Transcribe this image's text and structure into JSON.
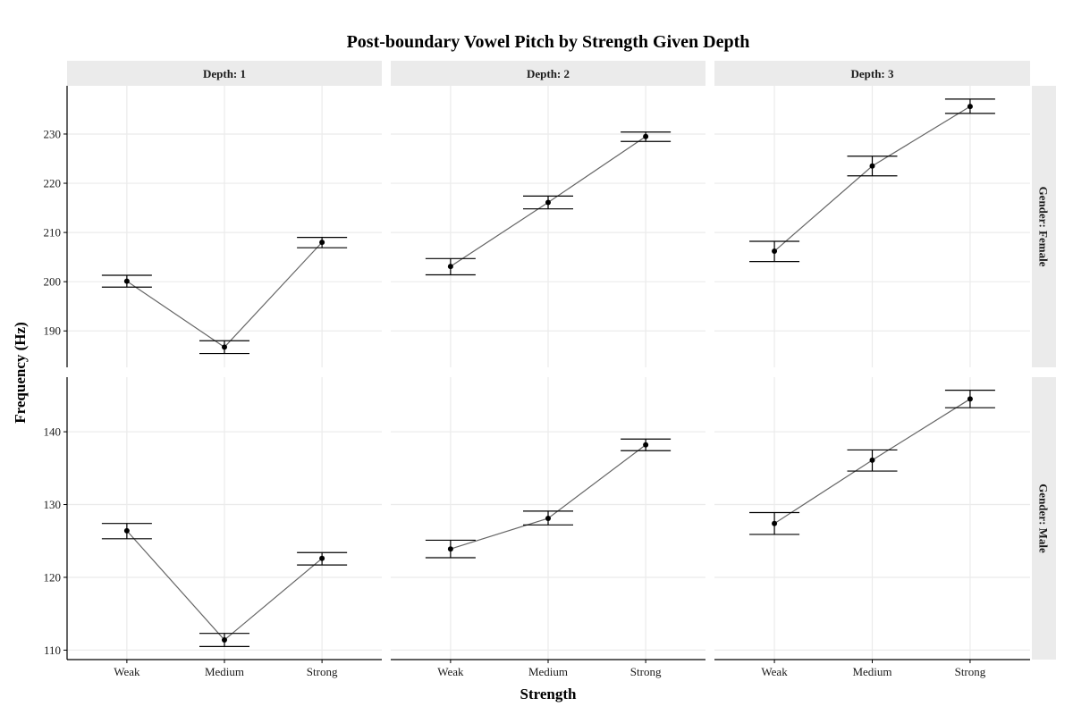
{
  "chart_data": {
    "type": "line",
    "title": "Post-boundary Vowel Pitch by Strength Given Depth",
    "xlabel": "Strength",
    "ylabel": "Frequency (Hz)",
    "categories": [
      "Weak",
      "Medium",
      "Strong"
    ],
    "grid": true,
    "legend": "none",
    "facet_columns": [
      "Depth: 1",
      "Depth: 2",
      "Depth: 3"
    ],
    "facet_rows": [
      "Gender: Female",
      "Gender: Male"
    ],
    "rows": [
      {
        "label": "Gender: Female",
        "yticks": [
          190,
          200,
          210,
          220,
          230
        ],
        "ylim": [
          182.6,
          239.8
        ],
        "panels": [
          {
            "column": "Depth: 1",
            "values": [
              200.1,
              186.7,
              208.0
            ],
            "lower": [
              198.9,
              185.4,
              206.9
            ],
            "upper": [
              201.3,
              188.0,
              209.0
            ]
          },
          {
            "column": "Depth: 2",
            "values": [
              203.1,
              216.1,
              229.5
            ],
            "lower": [
              201.4,
              214.8,
              228.5
            ],
            "upper": [
              204.7,
              217.4,
              230.4
            ]
          },
          {
            "column": "Depth: 3",
            "values": [
              206.2,
              223.5,
              235.6
            ],
            "lower": [
              204.1,
              221.5,
              234.2
            ],
            "upper": [
              208.2,
              225.5,
              237.1
            ]
          }
        ]
      },
      {
        "label": "Gender: Male",
        "yticks": [
          110,
          120,
          130,
          140
        ],
        "ylim": [
          108.7,
          147.5
        ],
        "panels": [
          {
            "column": "Depth: 1",
            "values": [
              126.4,
              111.4,
              122.6
            ],
            "lower": [
              125.3,
              110.5,
              121.7
            ],
            "upper": [
              127.4,
              112.3,
              123.4
            ]
          },
          {
            "column": "Depth: 2",
            "values": [
              123.9,
              128.1,
              138.2
            ],
            "lower": [
              122.7,
              127.2,
              137.4
            ],
            "upper": [
              125.1,
              129.1,
              139.0
            ]
          },
          {
            "column": "Depth: 3",
            "values": [
              127.4,
              136.1,
              144.5
            ],
            "lower": [
              125.9,
              134.6,
              143.3
            ],
            "upper": [
              128.9,
              137.5,
              145.7
            ]
          }
        ]
      }
    ]
  }
}
